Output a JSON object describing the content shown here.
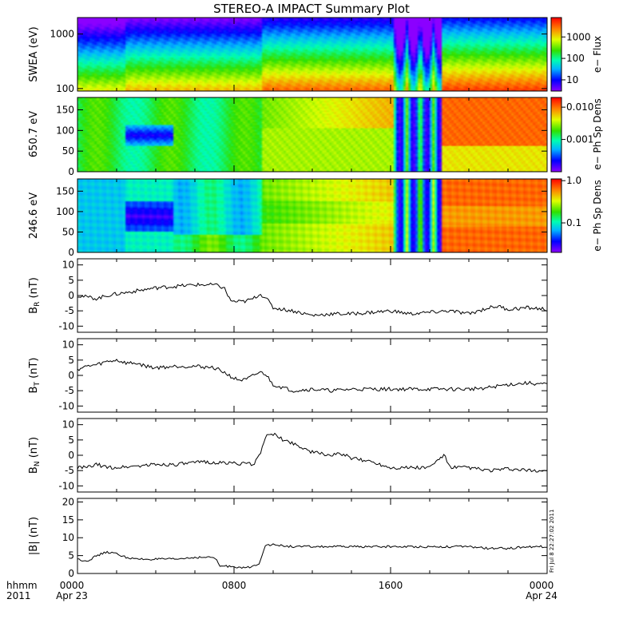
{
  "title": "STEREO-A IMPACT Summary Plot",
  "footer": {
    "time_label": "hhmm",
    "year": "2011",
    "xticks": [
      "0000",
      "0800",
      "1600",
      "0000"
    ],
    "start_date": "Apr 23",
    "end_date": "Apr 24"
  },
  "stamp": "Fri Jul 8 22:27:02 2011",
  "chart_data": [
    {
      "type": "heatmap",
      "ylabel": "SWEA (eV)",
      "yscale": "log",
      "ylim": [
        90,
        2000
      ],
      "yticks": [
        "1000",
        "100"
      ],
      "colorbar": {
        "label": "e− Flux",
        "scale": "log",
        "range": [
          3,
          8000
        ],
        "ticks": [
          "1000",
          "100",
          "10"
        ]
      }
    },
    {
      "type": "heatmap",
      "ylabel": "650.7 eV",
      "ylim": [
        0,
        180
      ],
      "yticks": [
        "150",
        "100",
        "50",
        "0"
      ],
      "colorbar": {
        "label": "e− Ph Sp Dens",
        "scale": "log",
        "range": [
          0.0001,
          0.02
        ],
        "ticks": [
          "0.010",
          "0.001"
        ]
      }
    },
    {
      "type": "heatmap",
      "ylabel": "246.6 eV",
      "ylim": [
        0,
        180
      ],
      "yticks": [
        "150",
        "100",
        "50",
        "0"
      ],
      "colorbar": {
        "label": "e− Ph Sp Dens",
        "scale": "log",
        "range": [
          0.02,
          1.1
        ],
        "ticks": [
          "1.0",
          "0.1"
        ]
      }
    },
    {
      "type": "line",
      "ylabel_main": "B",
      "ylabel_sub": "R",
      "ylabel_unit": " (nT)",
      "ylim": [
        -12,
        12
      ],
      "yticks": [
        "10",
        "5",
        "0",
        "-5",
        "-10"
      ],
      "x_hours": [
        0,
        0.5,
        1,
        1.5,
        2,
        2.5,
        3,
        3.5,
        4,
        5,
        6,
        7,
        7.5,
        7.8,
        8,
        8.5,
        9,
        9.3,
        9.6,
        10,
        11,
        12,
        13,
        14,
        15,
        16,
        17,
        18,
        19,
        20,
        21,
        21.5,
        22,
        23,
        24
      ],
      "values": [
        0,
        -0.5,
        -1,
        0,
        0.5,
        1,
        1.5,
        2,
        2.5,
        3,
        3.5,
        3.5,
        2.5,
        -1.5,
        -2,
        -2,
        -1,
        0.5,
        -0.5,
        -4,
        -5,
        -6.5,
        -6,
        -6,
        -5.5,
        -5,
        -6,
        -5.5,
        -5,
        -6,
        -4,
        -3.5,
        -4.5,
        -4,
        -4.5
      ]
    },
    {
      "type": "line",
      "ylabel_main": "B",
      "ylabel_sub": "T",
      "ylabel_unit": " (nT)",
      "ylim": [
        -12,
        12
      ],
      "yticks": [
        "10",
        "5",
        "0",
        "-5",
        "-10"
      ],
      "x_hours": [
        0,
        0.5,
        1,
        1.5,
        2,
        2.5,
        3,
        3.5,
        4,
        5,
        6,
        7,
        7.5,
        8,
        8.3,
        8.6,
        9,
        9.3,
        9.6,
        10,
        10.5,
        11,
        12,
        13,
        14,
        15,
        16,
        17,
        18,
        19,
        20,
        21,
        22,
        23,
        24
      ],
      "values": [
        2,
        3,
        3.5,
        4.5,
        5,
        4,
        4,
        3,
        2.5,
        3,
        3,
        2.5,
        1,
        -1,
        -1.5,
        -1.5,
        0,
        1,
        0.5,
        -3,
        -4,
        -5,
        -4.5,
        -5,
        -4.5,
        -4.5,
        -4.5,
        -4.5,
        -4.5,
        -4.5,
        -4.5,
        -4,
        -3,
        -2.5,
        -3
      ]
    },
    {
      "type": "line",
      "ylabel_main": "B",
      "ylabel_sub": "N",
      "ylabel_unit": " (nT)",
      "ylim": [
        -12,
        12
      ],
      "yticks": [
        "10",
        "5",
        "0",
        "-5",
        "-10"
      ],
      "x_hours": [
        0,
        0.5,
        1,
        1.5,
        2,
        3,
        4,
        5,
        6,
        6.5,
        7,
        8,
        9,
        9.3,
        9.6,
        10,
        10.5,
        11,
        12,
        13,
        13.5,
        14,
        15,
        16,
        17,
        18,
        18.5,
        18.8,
        19,
        20,
        21,
        22,
        23,
        24
      ],
      "values": [
        -4,
        -4,
        -3,
        -4,
        -4,
        -3.5,
        -3,
        -3,
        -2.5,
        -2,
        -2.5,
        -2.5,
        -3,
        0,
        6,
        7,
        5,
        4,
        1,
        0,
        0.5,
        -1,
        -2,
        -4,
        -4,
        -4,
        -1,
        0,
        -4,
        -4,
        -5,
        -4.5,
        -5,
        -5
      ]
    },
    {
      "type": "line",
      "ylabel_main": "|B|",
      "ylabel_sub": "",
      "ylabel_unit": " (nT)",
      "ylim": [
        0,
        21
      ],
      "yticks": [
        "20",
        "15",
        "10",
        "5",
        "0"
      ],
      "x_hours": [
        0,
        0.5,
        1,
        1.5,
        2,
        2.5,
        3,
        4,
        5,
        6,
        7,
        7.3,
        8,
        8.5,
        9,
        9.3,
        9.6,
        10,
        11,
        12,
        13,
        14,
        15,
        16,
        17,
        18,
        19,
        20,
        21,
        22,
        23,
        24
      ],
      "values": [
        4,
        3.5,
        5,
        6,
        5.5,
        4.5,
        4,
        4,
        4,
        4.5,
        4.5,
        2,
        2,
        1.5,
        2,
        3,
        8,
        8,
        7.5,
        7.5,
        7.5,
        7.5,
        7.5,
        7.5,
        7.5,
        7.5,
        7.5,
        7.5,
        7,
        7,
        7.5,
        7.5
      ]
    }
  ]
}
